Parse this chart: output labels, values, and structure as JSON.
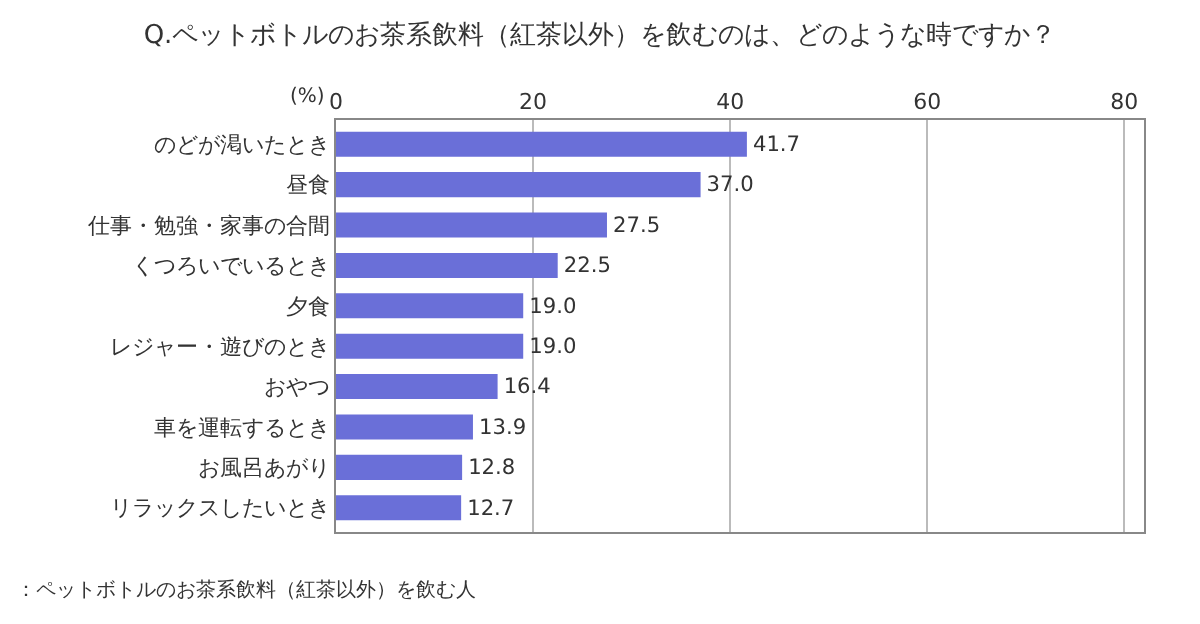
{
  "chart_data": {
    "type": "bar",
    "orientation": "horizontal",
    "title": "Q.ペットボトルのお茶系飲料（紅茶以外）を飲むのは、どのような時ですか？",
    "xlabel": "(%)",
    "categories": [
      "のどが渇いたとき",
      "昼食",
      "仕事・勉強・家事の合間",
      "くつろいでいるとき",
      "夕食",
      "レジャー・遊びのとき",
      "おやつ",
      "車を運転するとき",
      "お風呂あがり",
      "リラックスしたいとき"
    ],
    "values": [
      41.7,
      37.0,
      27.5,
      22.5,
      19.0,
      19.0,
      16.4,
      13.9,
      12.8,
      12.7
    ],
    "value_labels": [
      "41.7",
      "37.0",
      "27.5",
      "22.5",
      "19.0",
      "19.0",
      "16.4",
      "13.9",
      "12.8",
      "12.7"
    ],
    "color": "#6a6fd8",
    "xlim": [
      0,
      82
    ],
    "xticks": [
      0,
      20,
      40,
      60,
      80
    ],
    "grid": "x",
    "legend": false,
    "annotations": [
      "：ペットボトルのお茶系飲料（紅茶以外）を飲む人"
    ]
  }
}
